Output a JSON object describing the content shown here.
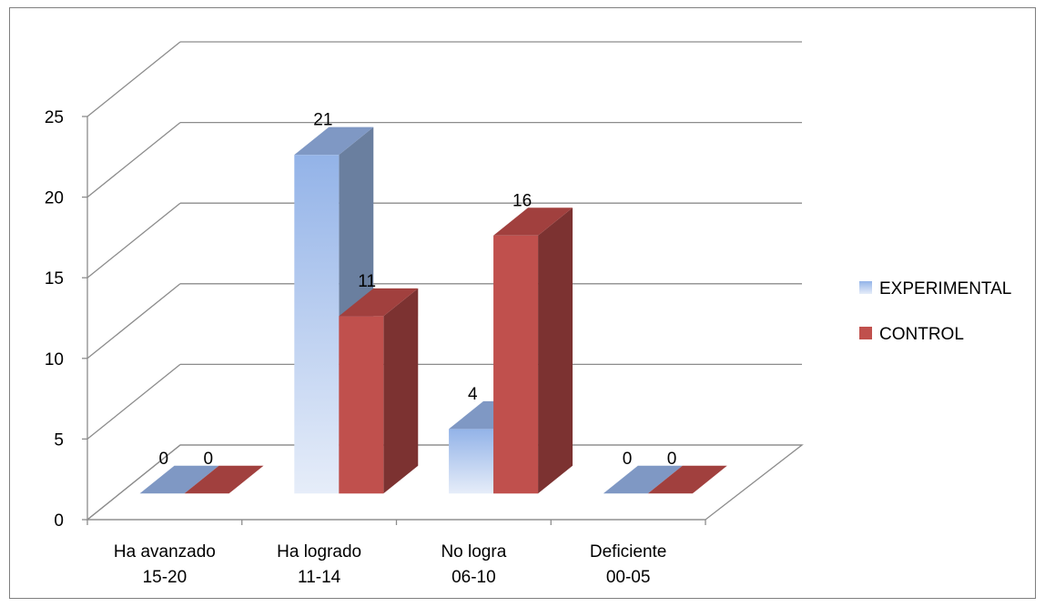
{
  "chart_data": {
    "type": "bar",
    "categories": [
      [
        "Ha avanzado",
        "15-20"
      ],
      [
        "Ha logrado",
        "11-14"
      ],
      [
        "No logra",
        "06-10"
      ],
      [
        "Deficiente",
        "00-05"
      ]
    ],
    "series": [
      {
        "name": "EXPERIMENTAL",
        "values": [
          0,
          21,
          4,
          0
        ],
        "color": "#8eb0e6"
      },
      {
        "name": "CONTROL",
        "values": [
          0,
          11,
          16,
          0
        ],
        "color": "#c0504d"
      }
    ],
    "title": "",
    "xlabel": "",
    "ylabel": "",
    "ylim": [
      0,
      25
    ],
    "yticks": [
      0,
      5,
      10,
      15,
      20,
      25
    ],
    "grid": true,
    "legend_position": "right",
    "data_labels": true,
    "style": "3d-clustered-column"
  }
}
